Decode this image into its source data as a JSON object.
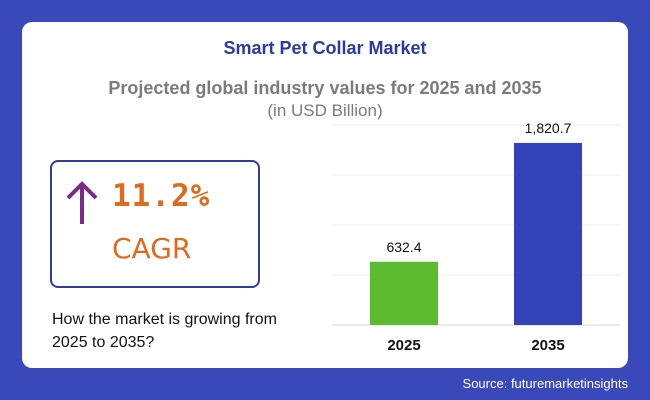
{
  "chart_data": {
    "type": "bar",
    "title": "Smart Pet Collar Market",
    "subtitle": "Projected global industry values for 2025 and 2035",
    "unit": "(in USD Billion)",
    "categories": [
      "2025",
      "2035"
    ],
    "values": [
      632.4,
      1820.7
    ],
    "value_labels": [
      "632.4",
      "1,820.7"
    ],
    "bar_colors": [
      "#5cbb2e",
      "#3342b8"
    ],
    "ylim": [
      0,
      2000
    ],
    "grid": true
  },
  "cagr": {
    "value": "11.2%",
    "label": "CAGR",
    "question": "How the market is growing from 2025 to 2035?",
    "icon": "arrow-up-icon",
    "color": "#e06a1b",
    "arrow_color": "#7c2a86"
  },
  "source": "Source: futuremarketinsights"
}
